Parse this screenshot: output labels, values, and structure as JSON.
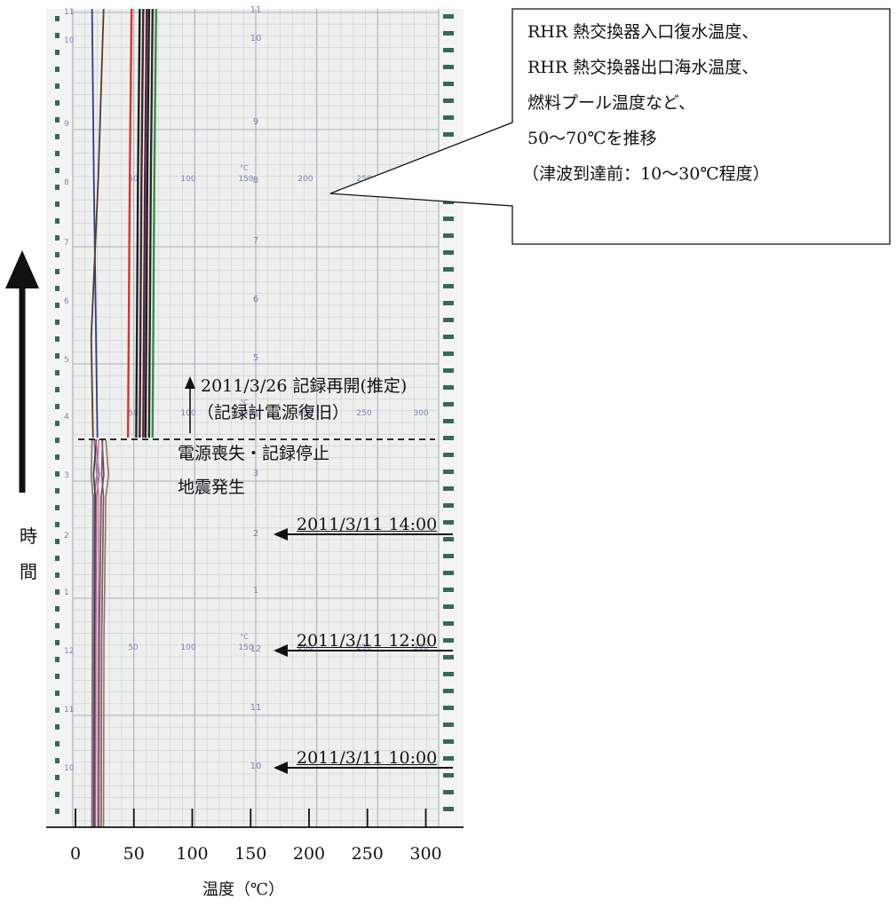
{
  "chart_data": {
    "type": "line",
    "xlabel": "温度（℃）",
    "ylabel": [
      "時",
      "間"
    ],
    "x_ticks": [
      0,
      50,
      100,
      150,
      200,
      250,
      300
    ],
    "xlim": [
      -25,
      330
    ],
    "paper_scale_labels": [
      "50",
      "100",
      "150",
      "200",
      "250",
      "300"
    ],
    "paper_unit": "°C",
    "paper_hour_labels": [
      "11",
      "10",
      "9",
      "8",
      "7",
      "6",
      "5",
      "4",
      "3",
      "2",
      "1",
      "12",
      "11",
      "10"
    ],
    "callout": [
      "RHR 熱交換器入口復水温度、",
      "RHR 熱交換器出口海水温度、",
      "燃料プール温度など、",
      "50～70℃を推移",
      "（津波到達前：10～30℃程度）"
    ],
    "events": [
      {
        "label": "2011/3/26 記録再開(推定)",
        "sub": "（記録計電源復旧）"
      },
      {
        "label": "電源喪失・記録停止",
        "sub": "地震発生"
      }
    ],
    "times": [
      {
        "label": "2011/3/11 14:00"
      },
      {
        "label": "2011/3/11 12:00"
      },
      {
        "label": "2011/3/11 10:00"
      }
    ],
    "series_before": [
      {
        "color": "#8a6d5c",
        "values": [
          14,
          15
        ]
      },
      {
        "color": "#6f7fb0",
        "values": [
          15,
          16
        ]
      },
      {
        "color": "#3a3a3a",
        "values": [
          16,
          17
        ]
      },
      {
        "color": "#b05a8a",
        "values": [
          17,
          18
        ]
      },
      {
        "color": "#d07aa8",
        "values": [
          19,
          20
        ]
      },
      {
        "color": "#7a4a3a",
        "values": [
          20,
          22
        ]
      },
      {
        "color": "#5a5a8a",
        "values": [
          22,
          24
        ]
      },
      {
        "color": "#a07050",
        "values": [
          24,
          26
        ]
      }
    ],
    "series_after": [
      {
        "color": "#2e3d8f",
        "x": 18
      },
      {
        "color": "#5b3a2a",
        "x": 15
      },
      {
        "color": "#e0302a",
        "x": 45
      },
      {
        "color": "#1e1e1e",
        "x": 52
      },
      {
        "color": "#3a2a2a",
        "x": 55
      },
      {
        "color": "#602040",
        "x": 58
      },
      {
        "color": "#1e1e1e",
        "x": 60
      },
      {
        "color": "#2a2a2a",
        "x": 63
      },
      {
        "color": "#2f8f3f",
        "x": 66
      }
    ],
    "colors": {
      "paper": "#eef0ee",
      "grid_minor": "#c9ccd6",
      "grid_major": "#a8acbf",
      "scale_text": "#7a84b6",
      "sprocket": "#356b4f"
    }
  }
}
